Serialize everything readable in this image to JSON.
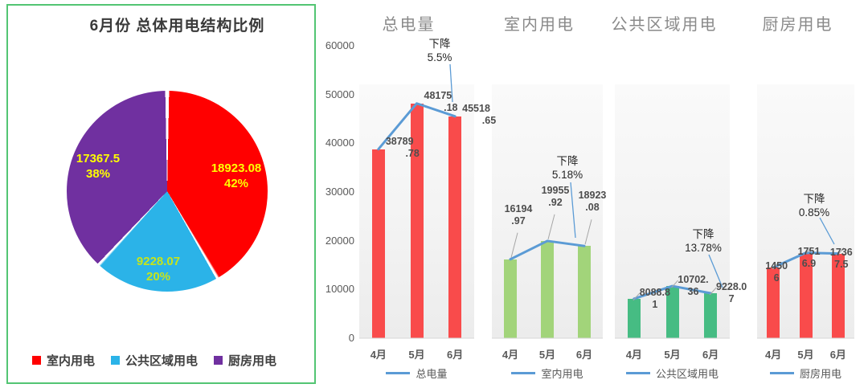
{
  "chart_data": [
    {
      "type": "pie",
      "title": "6月份 总体用电结构比例",
      "categories": [
        "室内用电",
        "公共区域用电",
        "厨房用电"
      ],
      "values": [
        18923.08,
        9228.07,
        17367.5
      ],
      "value_labels": [
        "18923.08",
        "9228.07",
        "17367.5"
      ],
      "percent_labels": [
        "42%",
        "20%",
        "38%"
      ],
      "colors": [
        "#FF0000",
        "#2BB3E8",
        "#7030A0"
      ],
      "label_colors": [
        "#FFFF00",
        "#C6E41B",
        "#FFFF00"
      ],
      "legend_position": "bottom",
      "border_color": "#53C573"
    },
    {
      "type": "bar+line",
      "title": "总电量",
      "categories": [
        "4月",
        "5月",
        "6月"
      ],
      "values": [
        38789.78,
        48175.18,
        45518.65
      ],
      "label_lines": [
        [
          "38789",
          ".78"
        ],
        [
          "48175",
          ".18"
        ],
        [
          "45518",
          ".65"
        ]
      ],
      "annotation": {
        "line1": "下降",
        "line2": "5.5%"
      },
      "legend_label": "总电量",
      "bar_color": "#F94B4B",
      "line_color": "#5B9BD5",
      "ylim": [
        0,
        60000
      ],
      "yticks": [
        0,
        10000,
        20000,
        30000,
        40000,
        50000,
        60000
      ],
      "y_axis_visible": true,
      "grid": false,
      "legend_position": "bottom"
    },
    {
      "type": "bar+line",
      "title": "室内用电",
      "categories": [
        "4月",
        "5月",
        "6月"
      ],
      "values": [
        16194.97,
        19955.92,
        18923.08
      ],
      "label_lines": [
        [
          "16194",
          ".97"
        ],
        [
          "19955",
          ".92"
        ],
        [
          "18923",
          ".08"
        ]
      ],
      "annotation": {
        "line1": "下降",
        "line2": "5.18%"
      },
      "legend_label": "室内用电",
      "bar_color": "#A2D47A",
      "line_color": "#5B9BD5",
      "ylim": [
        0,
        60000
      ],
      "yticks": [],
      "y_axis_visible": false,
      "grid": false,
      "legend_position": "bottom"
    },
    {
      "type": "bar+line",
      "title": "公共区域用电",
      "categories": [
        "4月",
        "5月",
        "6月"
      ],
      "values": [
        8088.81,
        10702.36,
        9228.07
      ],
      "label_lines": [
        [
          "8088.8",
          "1"
        ],
        [
          "10702.",
          "36"
        ],
        [
          "9228.0",
          "7"
        ]
      ],
      "annotation": {
        "line1": "下降",
        "line2": "13.78%"
      },
      "legend_label": "公共区域用电",
      "bar_color": "#46BC83",
      "line_color": "#5B9BD5",
      "ylim": [
        0,
        60000
      ],
      "yticks": [],
      "y_axis_visible": false,
      "grid": false,
      "legend_position": "bottom"
    },
    {
      "type": "bar+line",
      "title": "厨房用电",
      "categories": [
        "4月",
        "5月",
        "6月"
      ],
      "values": [
        14506,
        17516.9,
        17367.5
      ],
      "label_lines": [
        [
          "1450",
          "6"
        ],
        [
          "1751",
          "6.9"
        ],
        [
          "1736",
          "7.5"
        ]
      ],
      "annotation": {
        "line1": "下降",
        "line2": "0.85%"
      },
      "legend_label": "厨房用电",
      "bar_color": "#F94B4B",
      "line_color": "#5B9BD5",
      "ylim": [
        0,
        60000
      ],
      "yticks": [],
      "y_axis_visible": false,
      "grid": false,
      "legend_position": "bottom"
    }
  ]
}
